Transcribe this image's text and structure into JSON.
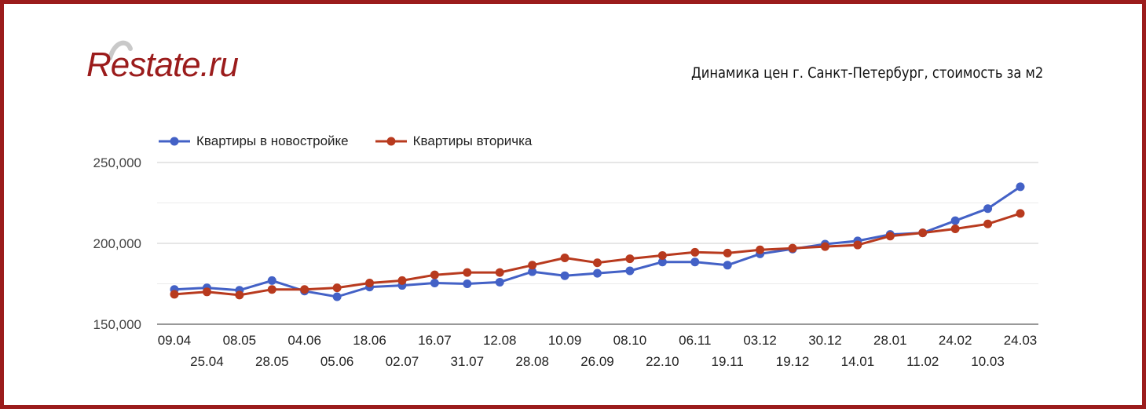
{
  "logo": {
    "text": "Restate.ru",
    "color": "#9b1c1c"
  },
  "frame": {
    "border_color": "#9b1c1c"
  },
  "chart_data": {
    "type": "line",
    "title": "Динамика цен г. Санкт-Петербург, стоимость за м2",
    "xlabel": "",
    "ylabel": "",
    "ylim": [
      150000,
      250000
    ],
    "yticks": [
      150000,
      200000,
      250000
    ],
    "ytick_labels": [
      "150,000",
      "200,000",
      "250,000"
    ],
    "grid": true,
    "legend_position": "top-left",
    "categories": [
      "09.04",
      "25.04",
      "08.05",
      "28.05",
      "04.06",
      "05.06",
      "18.06",
      "02.07",
      "16.07",
      "31.07",
      "12.08",
      "28.08",
      "10.09",
      "26.09",
      "08.10",
      "22.10",
      "06.11",
      "19.11",
      "03.12",
      "19.12",
      "30.12",
      "14.01",
      "28.01",
      "11.02",
      "24.02",
      "10.03",
      "24.03"
    ],
    "series": [
      {
        "name": "Квартиры в новостройке",
        "color": "#4361c6",
        "values": [
          171500,
          172500,
          171000,
          177000,
          170500,
          167000,
          173000,
          174000,
          175500,
          175000,
          176000,
          182500,
          180000,
          181500,
          183000,
          188500,
          188500,
          186500,
          193500,
          196500,
          199500,
          201500,
          205500,
          206500,
          214000,
          221500,
          235000
        ]
      },
      {
        "name": "Квартиры вторичка",
        "color": "#b83a1e",
        "values": [
          168500,
          170000,
          168000,
          171500,
          171500,
          172500,
          175500,
          177000,
          180500,
          182000,
          182000,
          186500,
          191000,
          188000,
          190500,
          192500,
          194500,
          194000,
          196000,
          197000,
          198000,
          199000,
          204500,
          206500,
          209000,
          212000,
          218500
        ]
      }
    ]
  }
}
